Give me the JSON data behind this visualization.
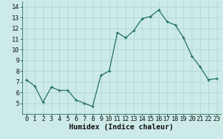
{
  "x": [
    0,
    1,
    2,
    3,
    4,
    5,
    6,
    7,
    8,
    9,
    10,
    11,
    12,
    13,
    14,
    15,
    16,
    17,
    18,
    19,
    20,
    21,
    22,
    23
  ],
  "y": [
    7.2,
    6.6,
    5.1,
    6.5,
    6.2,
    6.2,
    5.3,
    5.0,
    4.7,
    7.6,
    8.0,
    11.6,
    11.1,
    11.8,
    12.9,
    13.1,
    13.7,
    12.6,
    12.3,
    11.1,
    9.4,
    8.4,
    7.2,
    7.3
  ],
  "xlabel": "Humidex (Indice chaleur)",
  "ylim": [
    4,
    14.5
  ],
  "xlim": [
    -0.5,
    23.5
  ],
  "yticks": [
    5,
    6,
    7,
    8,
    9,
    10,
    11,
    12,
    13,
    14
  ],
  "xticks": [
    0,
    1,
    2,
    3,
    4,
    5,
    6,
    7,
    8,
    9,
    10,
    11,
    12,
    13,
    14,
    15,
    16,
    17,
    18,
    19,
    20,
    21,
    22,
    23
  ],
  "line_color": "#1a6b5a",
  "marker": "+",
  "bg_color": "#cceae7",
  "grid_color": "#aad4d0",
  "font_color": "#111111",
  "tick_fontsize": 6.5,
  "xlabel_fontsize": 7.5
}
